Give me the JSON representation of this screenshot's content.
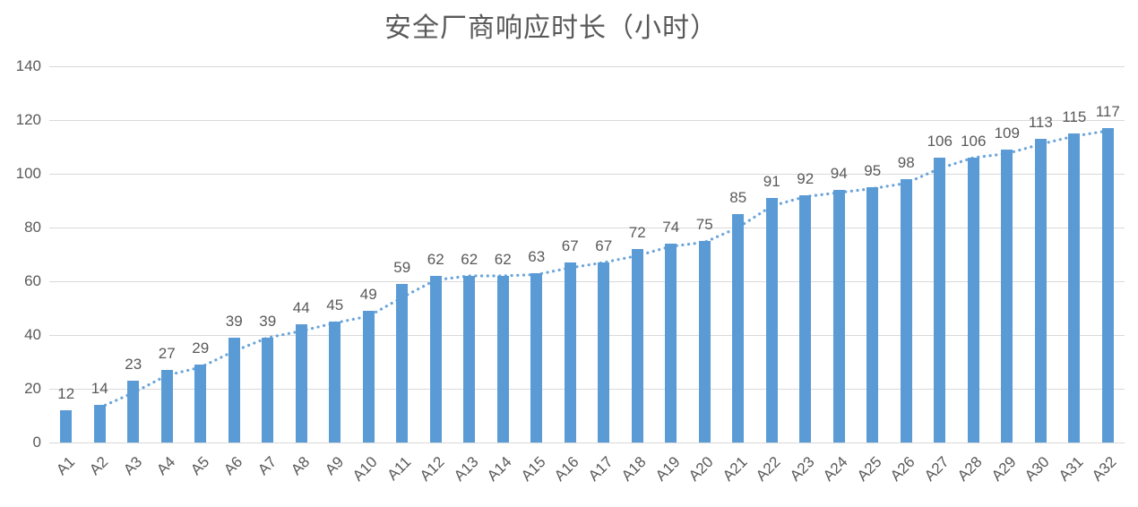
{
  "chart_data": {
    "type": "bar",
    "title": "安全厂商响应时长（小时）",
    "categories": [
      "A1",
      "A2",
      "A3",
      "A4",
      "A5",
      "A6",
      "A7",
      "A8",
      "A9",
      "A10",
      "A11",
      "A12",
      "A13",
      "A14",
      "A15",
      "A16",
      "A17",
      "A18",
      "A19",
      "A20",
      "A21",
      "A22",
      "A23",
      "A24",
      "A25",
      "A26",
      "A27",
      "A28",
      "A29",
      "A30",
      "A31",
      "A32"
    ],
    "values": [
      12,
      14,
      23,
      27,
      29,
      39,
      39,
      44,
      45,
      49,
      59,
      62,
      62,
      62,
      63,
      67,
      67,
      72,
      74,
      75,
      85,
      91,
      92,
      94,
      95,
      98,
      106,
      106,
      109,
      113,
      115,
      117
    ],
    "xlabel": "",
    "ylabel": "",
    "ylim": [
      0,
      140
    ],
    "yticks": [
      0,
      20,
      40,
      60,
      80,
      100,
      120,
      140
    ],
    "grid": true,
    "legend": false,
    "value_labels": true,
    "trendline": {
      "type": "moving_average",
      "period": 2,
      "style": "dotted",
      "color": "#5B9BD5"
    },
    "colors": {
      "bar": "#5B9BD5",
      "gridline": "#D9D9D9",
      "axis_label": "#595959",
      "value_label": "#595959",
      "title": "#595959"
    }
  }
}
